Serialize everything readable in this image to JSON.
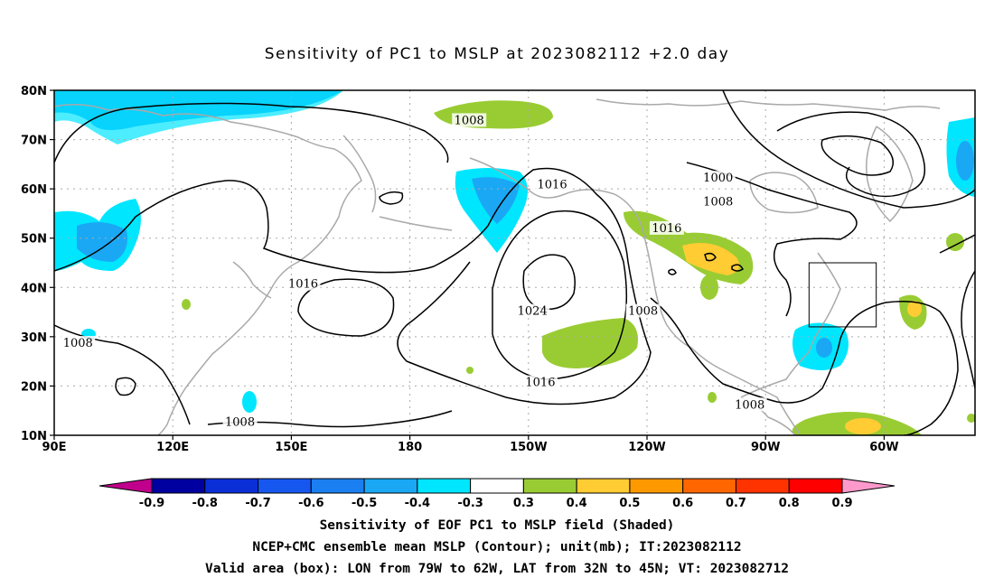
{
  "title": "Sensitivity of PC1 to MSLP at 2023082112 +2.0 day",
  "map": {
    "lat_labels": [
      "80N",
      "70N",
      "60N",
      "50N",
      "40N",
      "30N",
      "20N",
      "10N"
    ],
    "lon_labels": [
      "90E",
      "120E",
      "150E",
      "180",
      "150W",
      "120W",
      "90W",
      "60W"
    ],
    "contour_labels": [
      {
        "text": "1008",
        "lon": 195,
        "lat": 73.7
      },
      {
        "text": "1016",
        "lon": 216,
        "lat": 60.7
      },
      {
        "text": "1000",
        "lon": 258,
        "lat": 62
      },
      {
        "text": "1008",
        "lon": 258,
        "lat": 57.2
      },
      {
        "text": "1016",
        "lon": 245,
        "lat": 51.8
      },
      {
        "text": "1016",
        "lon": 153,
        "lat": 40.5
      },
      {
        "text": "1024",
        "lon": 211,
        "lat": 35
      },
      {
        "text": "1008",
        "lon": 239,
        "lat": 35
      },
      {
        "text": "1008",
        "lon": 96,
        "lat": 28.5
      },
      {
        "text": "1016",
        "lon": 213,
        "lat": 20.5
      },
      {
        "text": "1008",
        "lon": 266,
        "lat": 16
      },
      {
        "text": "1008",
        "lon": 137,
        "lat": 12.5
      }
    ],
    "valid_box": {
      "lon_min": 281,
      "lon_max": 298,
      "lat_min": 32,
      "lat_max": 45
    }
  },
  "colorbar": {
    "labels": [
      "-0.9",
      "-0.8",
      "-0.7",
      "-0.6",
      "-0.5",
      "-0.4",
      "-0.3",
      "0.3",
      "0.4",
      "0.5",
      "0.6",
      "0.7",
      "0.8",
      "0.9"
    ],
    "colors": [
      "#0000a0",
      "#0b2fd6",
      "#1657f0",
      "#1a7ff0",
      "#1aa8f5",
      "#00e6ff",
      "#ffffff",
      "#99cc33",
      "#ffcc33",
      "#ff9900",
      "#ff6600",
      "#ff3300",
      "#ff0000"
    ],
    "end_low_color": "#c0008c",
    "end_high_color": "#ff99cc"
  },
  "footer": {
    "line1": "Sensitivity of EOF PC1 to MSLP field (Shaded)",
    "line2": "NCEP+CMC ensemble mean MSLP (Contour); unit(mb); IT:2023082112",
    "line3": "Valid area (box): LON from 79W to 62W, LAT from 32N to 45N; VT: 2023082712"
  }
}
